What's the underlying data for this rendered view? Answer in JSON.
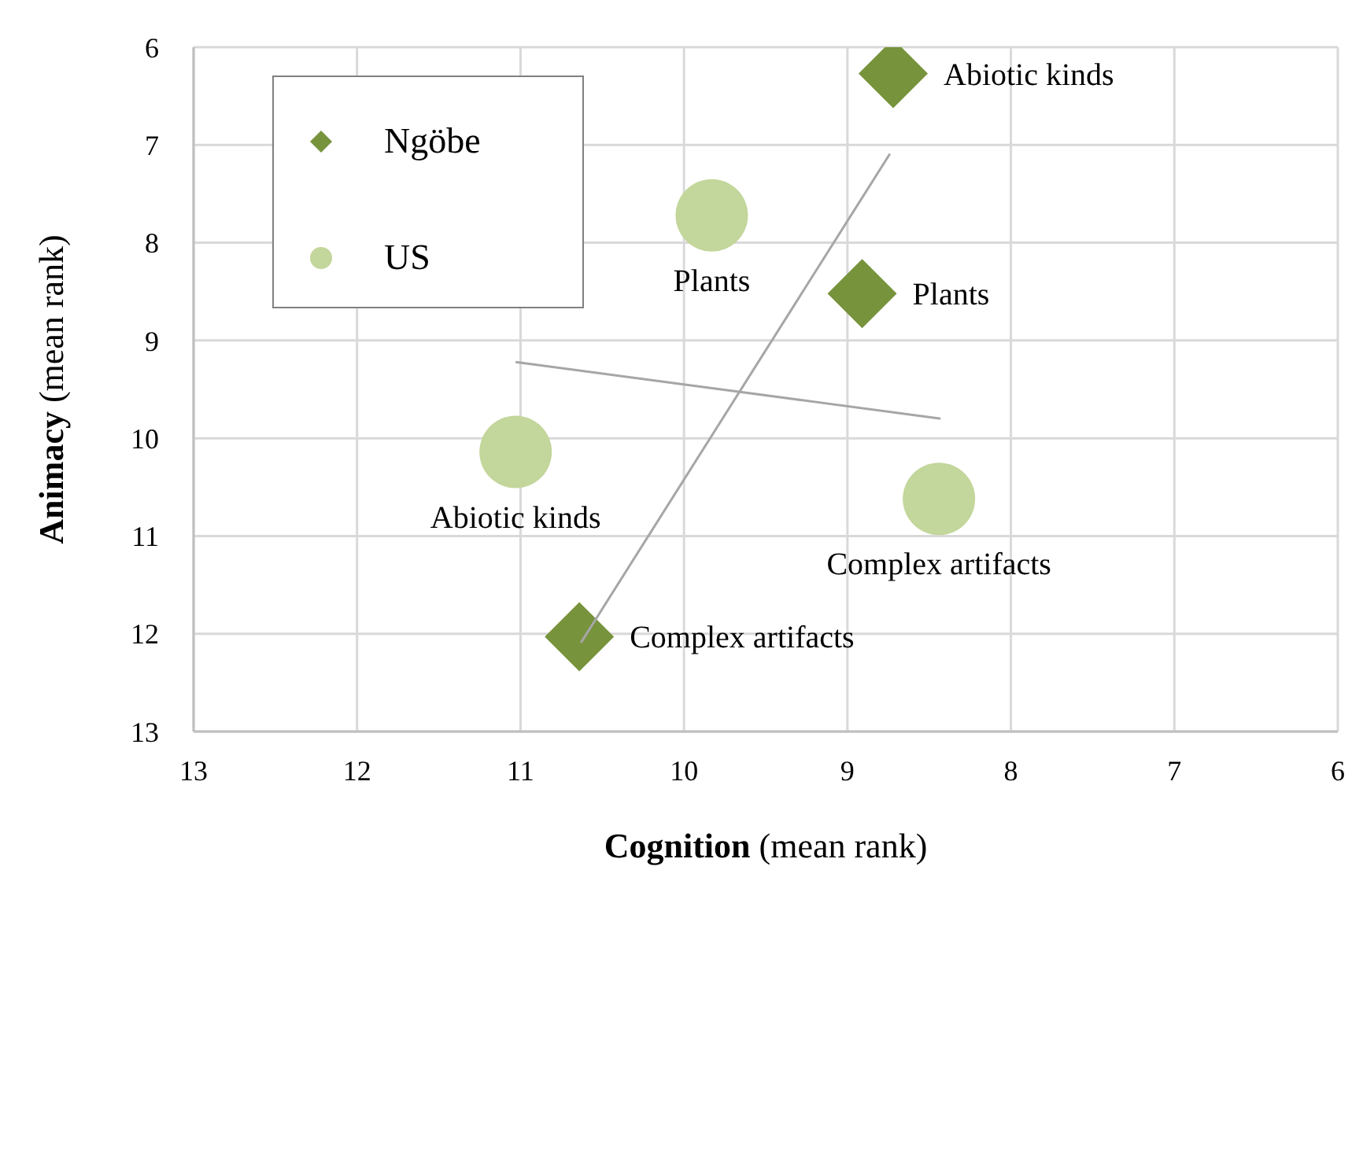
{
  "chart_data": {
    "type": "scatter",
    "xlabel": "Cognition (mean rank)",
    "ylabel": "Animacy (mean rank)",
    "xlim": [
      13,
      6
    ],
    "xticks": [
      13,
      12,
      11,
      10,
      9,
      8,
      7,
      6
    ],
    "ylim": [
      13,
      6
    ],
    "yticks": [
      6,
      7,
      8,
      9,
      10,
      11,
      12,
      13
    ],
    "grid": true,
    "legend": "top left",
    "series": [
      {
        "name": "Ngöbe",
        "color": "#77933c",
        "marker": "diamond",
        "x": [
          8.72,
          8.91,
          10.64
        ],
        "values": [
          6.27,
          8.52,
          12.03
        ]
      },
      {
        "name": "US",
        "color": "#c3d69b",
        "marker": "circle",
        "x": [
          9.83,
          11.03,
          8.44
        ],
        "values": [
          7.72,
          10.14,
          10.62
        ]
      },
      {
        "type": "line",
        "color": "#a6a6a6",
        "marker": "none",
        "x": [
          8.74,
          10.63
        ],
        "values": [
          7.09,
          12.09
        ]
      },
      {
        "type": "line",
        "color": "#a6a6a6",
        "marker": "none",
        "x": [
          11.03,
          8.43
        ],
        "values": [
          9.22,
          9.8
        ]
      }
    ],
    "annotations": [
      {
        "text": "Abiotic kinds",
        "x": 8.72,
        "y": 6.27
      },
      {
        "text": "Plants",
        "x": 8.91,
        "y": 8.52
      },
      {
        "text": "Complex artifacts",
        "x": 10.64,
        "y": 12.03
      },
      {
        "text": "Plants",
        "x": 9.83,
        "y": 7.72
      },
      {
        "text": "Abiotic kinds",
        "x": 11.03,
        "y": 10.14
      },
      {
        "text": "Complex artifacts",
        "x": 8.44,
        "y": 10.62
      }
    ]
  }
}
